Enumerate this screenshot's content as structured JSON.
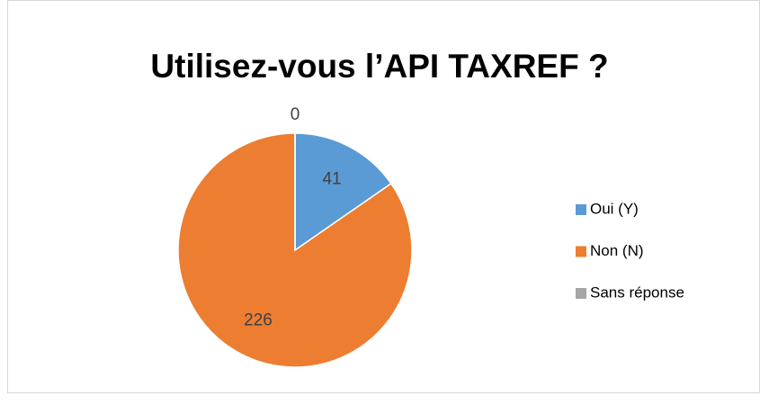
{
  "chart_data": {
    "type": "pie",
    "title": "Utilisez-vous l’API TAXREF ?",
    "categories": [
      "Oui (Y)",
      "Non (N)",
      "Sans réponse"
    ],
    "values": [
      41,
      226,
      0
    ],
    "colors": [
      "#5b9bd5",
      "#ed7d31",
      "#a5a5a5"
    ],
    "legend": "right"
  }
}
